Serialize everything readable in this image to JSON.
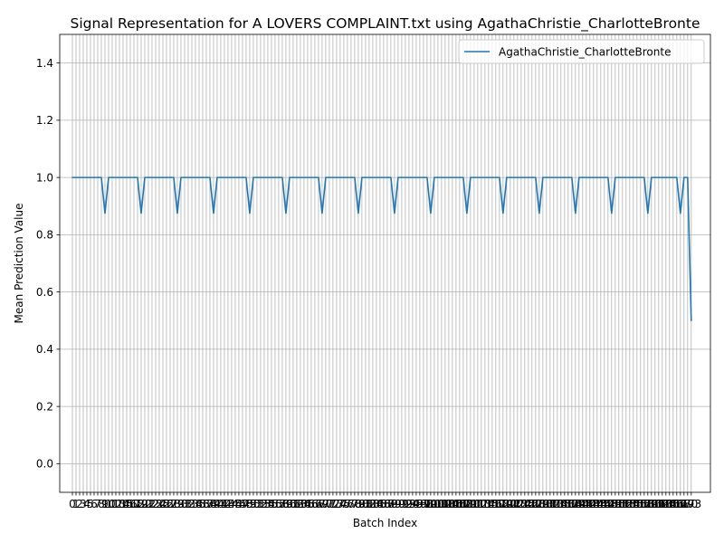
{
  "chart_data": {
    "type": "line",
    "title": "Signal Representation for A LOVERS COMPLAINT.txt using AgathaChristie_CharlotteBronte",
    "xlabel": "Batch Index",
    "ylabel": "Mean Prediction Value",
    "ylim": [
      -0.1,
      1.5
    ],
    "xlim": [
      -3.5,
      176.3
    ],
    "yticks": [
      0.0,
      0.2,
      0.4,
      0.6,
      0.8,
      1.0,
      1.2,
      1.4
    ],
    "ytick_labels": [
      "0.0",
      "0.2",
      "0.4",
      "0.6",
      "0.8",
      "1.0",
      "1.2",
      "1.4"
    ],
    "x_start": 0,
    "x_end": 171,
    "x_tick_label_tail": "173",
    "grid": true,
    "legend_position": "top-right",
    "colors": {
      "series": "#1f77b4",
      "grid": "#b0b0b0",
      "axes": "#000000",
      "background": "#ffffff"
    },
    "dip_value": 0.875,
    "dip_x": [
      9,
      19,
      29,
      39,
      49,
      59,
      69,
      79,
      89,
      99,
      109,
      119,
      129,
      139,
      149,
      159,
      168
    ],
    "drop_x": 171,
    "drop_value": 0.5,
    "series": [
      {
        "name": "AgathaChristie_CharlotteBronte",
        "color": "#1f77b4"
      }
    ]
  }
}
